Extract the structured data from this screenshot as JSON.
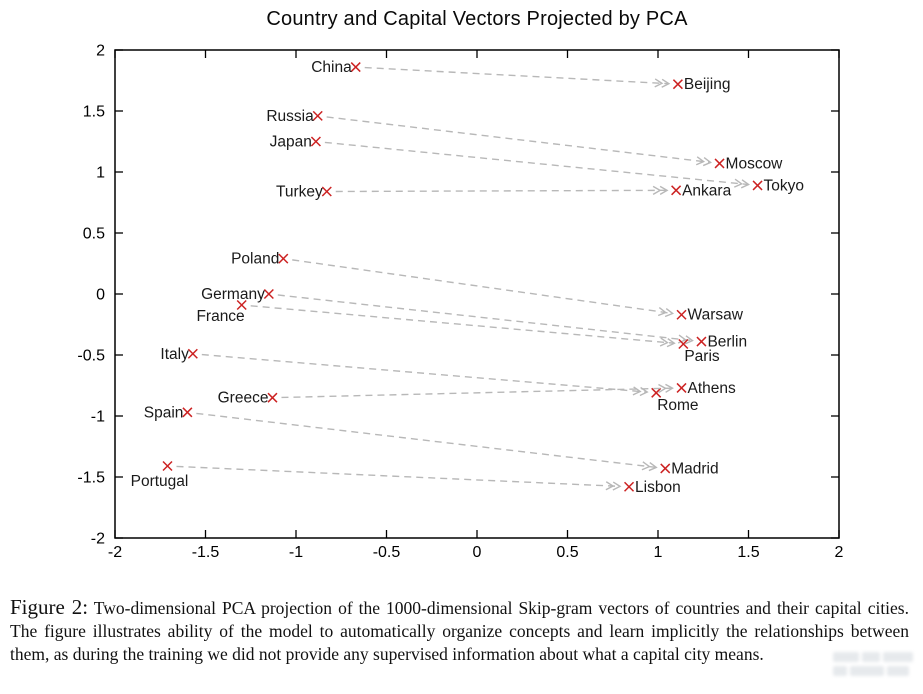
{
  "figure": {
    "caption": {
      "label": "Figure 2:",
      "text": " Two-dimensional PCA projection of the 1000-dimensional Skip-gram vectors of countries and their capital cities. The figure illustrates ability of the model to automatically organize concepts and learn implicitly the relationships between them, as during the training we did not provide any supervised information about what a capital city means."
    }
  },
  "chart_data": {
    "type": "scatter",
    "title": "Country and Capital Vectors Projected by PCA",
    "xlabel": "",
    "ylabel": "",
    "xlim": [
      -2,
      2
    ],
    "ylim": [
      -2,
      2
    ],
    "x_ticks": [
      -2,
      -1.5,
      -1,
      -0.5,
      0,
      0.5,
      1,
      1.5,
      2
    ],
    "y_ticks": [
      -2,
      -1.5,
      -1,
      -0.5,
      0,
      0.5,
      1,
      1.5,
      2
    ],
    "grid": false,
    "legend": "none",
    "marker": "x",
    "marker_color": "#cc2222",
    "arrow_color": "#b8b8b8",
    "axis_color": "#000000",
    "label_color": "#1a1a1a",
    "pairs": [
      {
        "country": {
          "label": "China",
          "x": -0.67,
          "y": 1.86,
          "label_side": "left"
        },
        "capital": {
          "label": "Beijing",
          "x": 1.11,
          "y": 1.72,
          "label_side": "right"
        }
      },
      {
        "country": {
          "label": "Russia",
          "x": -0.88,
          "y": 1.46,
          "label_side": "left"
        },
        "capital": {
          "label": "Moscow",
          "x": 1.34,
          "y": 1.07,
          "label_side": "right"
        }
      },
      {
        "country": {
          "label": "Japan",
          "x": -0.89,
          "y": 1.25,
          "label_side": "left"
        },
        "capital": {
          "label": "Tokyo",
          "x": 1.55,
          "y": 0.89,
          "label_side": "right"
        }
      },
      {
        "country": {
          "label": "Turkey",
          "x": -0.83,
          "y": 0.84,
          "label_side": "left"
        },
        "capital": {
          "label": "Ankara",
          "x": 1.1,
          "y": 0.85,
          "label_side": "right"
        }
      },
      {
        "country": {
          "label": "Poland",
          "x": -1.07,
          "y": 0.29,
          "label_side": "left"
        },
        "capital": {
          "label": "Warsaw",
          "x": 1.13,
          "y": -0.17,
          "label_side": "right"
        }
      },
      {
        "country": {
          "label": "Germany",
          "x": -1.15,
          "y": 0.0,
          "label_side": "left"
        },
        "capital": {
          "label": "Berlin",
          "x": 1.24,
          "y": -0.39,
          "label_side": "right"
        }
      },
      {
        "country": {
          "label": "France",
          "x": -1.3,
          "y": -0.09,
          "label_side": "below-left"
        },
        "capital": {
          "label": "Paris",
          "x": 1.14,
          "y": -0.41,
          "label_side": "below-right"
        }
      },
      {
        "country": {
          "label": "Italy",
          "x": -1.57,
          "y": -0.49,
          "label_side": "left"
        },
        "capital": {
          "label": "Rome",
          "x": 0.99,
          "y": -0.81,
          "label_side": "below-right"
        }
      },
      {
        "country": {
          "label": "Greece",
          "x": -1.13,
          "y": -0.85,
          "label_side": "left"
        },
        "capital": {
          "label": "Athens",
          "x": 1.13,
          "y": -0.77,
          "label_side": "right"
        }
      },
      {
        "country": {
          "label": "Spain",
          "x": -1.6,
          "y": -0.97,
          "label_side": "left"
        },
        "capital": {
          "label": "Madrid",
          "x": 1.04,
          "y": -1.43,
          "label_side": "right"
        }
      },
      {
        "country": {
          "label": "Portugal",
          "x": -1.71,
          "y": -1.41,
          "label_side": "below"
        },
        "capital": {
          "label": "Lisbon",
          "x": 0.84,
          "y": -1.58,
          "label_side": "right"
        }
      }
    ]
  }
}
